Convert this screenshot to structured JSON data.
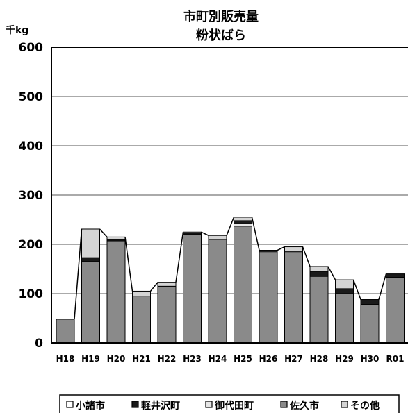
{
  "chart_data": {
    "type": "bar",
    "stacked": true,
    "title": "市町別販売量",
    "subtitle": "粉状ばら",
    "ylabel": "千kg",
    "xlabel": "",
    "ylim": [
      0,
      600
    ],
    "yticks": [
      0,
      100,
      200,
      300,
      400,
      500,
      600
    ],
    "grid": true,
    "legend_position": "bottom",
    "categories": [
      "H18",
      "H19",
      "H20",
      "H21",
      "H22",
      "H23",
      "H24",
      "H25",
      "H26",
      "H27",
      "H28",
      "H29",
      "H30",
      "R01"
    ],
    "series": [
      {
        "name": "小諸市",
        "color": "#ffffff",
        "values": [
          0,
          0,
          0,
          0,
          0,
          0,
          0,
          0,
          0,
          0,
          0,
          0,
          0,
          0
        ]
      },
      {
        "name": "軽井沢町",
        "color": "#1a1a1a",
        "values": [
          0,
          8,
          3,
          0,
          0,
          3,
          0,
          6,
          0,
          0,
          10,
          10,
          10,
          7
        ]
      },
      {
        "name": "御代田町",
        "color": "#e6e6e6",
        "values": [
          0,
          0,
          0,
          0,
          0,
          0,
          0,
          5,
          0,
          0,
          0,
          0,
          0,
          0
        ]
      },
      {
        "name": "佐久市",
        "color": "#8a8a8a",
        "values": [
          48,
          165,
          207,
          95,
          115,
          220,
          210,
          237,
          185,
          185,
          135,
          100,
          78,
          133
        ]
      },
      {
        "name": "その他",
        "color": "#d4d4d4",
        "values": [
          0,
          58,
          5,
          10,
          8,
          2,
          8,
          7,
          3,
          10,
          10,
          18,
          0,
          0
        ]
      }
    ]
  }
}
